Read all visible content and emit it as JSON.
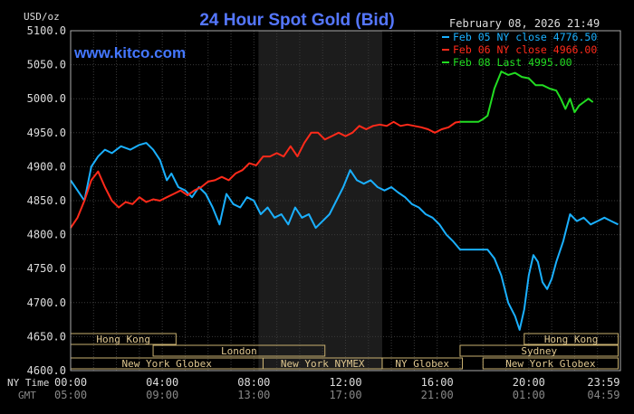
{
  "chart_data": {
    "type": "line",
    "title": "24 Hour Spot Gold (Bid)",
    "units_label": "USD/oz",
    "website": "www.kitco.com",
    "timestamp": "February 08, 2026 21:49",
    "ylim": [
      4600,
      5100
    ],
    "y_ticks": [
      "5100.0",
      "5050.0",
      "5000.0",
      "4950.0",
      "4900.0",
      "4850.0",
      "4800.0",
      "4750.0",
      "4700.0",
      "4650.0",
      "4600.0"
    ],
    "x_ticks_ny": [
      "00:00",
      "04:00",
      "08:00",
      "12:00",
      "16:00",
      "20:00",
      "23:59"
    ],
    "x_ticks_gmt": [
      "05:00",
      "09:00",
      "13:00",
      "17:00",
      "21:00",
      "01:00",
      "04:59"
    ],
    "ny_time_label": "NY Time",
    "gmt_label": "GMT",
    "xlim_hours": [
      0,
      24
    ],
    "shaded_region_hours": [
      8.2,
      13.6
    ],
    "grid": true,
    "legend": [
      {
        "text": "Feb 05 NY close 4776.50",
        "color": "#1ab0ff"
      },
      {
        "text": "Feb 06 NY close 4966.00",
        "color": "#ff2a1a"
      },
      {
        "text": "Feb 08 Last 4995.00",
        "color": "#22dd22"
      }
    ],
    "series": [
      {
        "name": "Feb 05",
        "color": "#1ab0ff",
        "x": [
          0,
          0.3,
          0.6,
          0.9,
          1.2,
          1.5,
          1.8,
          2.2,
          2.6,
          3.0,
          3.3,
          3.6,
          3.9,
          4.2,
          4.4,
          4.7,
          5.0,
          5.3,
          5.6,
          5.9,
          6.2,
          6.5,
          6.8,
          7.1,
          7.4,
          7.7,
          8.0,
          8.3,
          8.6,
          8.9,
          9.2,
          9.5,
          9.8,
          10.1,
          10.4,
          10.7,
          11.0,
          11.3,
          11.6,
          11.9,
          12.2,
          12.5,
          12.8,
          13.1,
          13.4,
          13.7,
          14.0,
          14.3,
          14.6,
          14.9,
          15.2,
          15.5,
          15.8,
          16.1,
          16.4,
          16.7,
          17.0,
          17.3,
          17.6,
          17.9,
          18.2,
          18.5,
          18.8,
          19.1,
          19.4,
          19.6,
          19.8,
          20.0,
          20.2,
          20.4,
          20.6,
          20.8,
          21.0,
          21.2,
          21.5,
          21.8,
          22.1,
          22.4,
          22.7,
          23.0,
          23.3,
          23.6,
          23.9
        ],
        "values": [
          4880,
          4865,
          4850,
          4900,
          4915,
          4925,
          4920,
          4930,
          4925,
          4932,
          4935,
          4925,
          4910,
          4880,
          4890,
          4870,
          4865,
          4855,
          4870,
          4860,
          4840,
          4815,
          4860,
          4845,
          4840,
          4855,
          4850,
          4830,
          4840,
          4825,
          4830,
          4815,
          4840,
          4825,
          4830,
          4810,
          4820,
          4830,
          4850,
          4870,
          4895,
          4880,
          4875,
          4880,
          4870,
          4865,
          4870,
          4862,
          4855,
          4845,
          4840,
          4830,
          4825,
          4815,
          4800,
          4790,
          4778,
          4778,
          4778,
          4778,
          4778,
          4765,
          4740,
          4700,
          4680,
          4660,
          4690,
          4740,
          4770,
          4760,
          4730,
          4720,
          4735,
          4760,
          4790,
          4830,
          4820,
          4825,
          4815,
          4820,
          4825,
          4820,
          4815
        ]
      },
      {
        "name": "Feb 06",
        "color": "#ff2a1a",
        "x": [
          0,
          0.3,
          0.6,
          0.9,
          1.2,
          1.5,
          1.8,
          2.1,
          2.4,
          2.7,
          3.0,
          3.3,
          3.6,
          3.9,
          4.2,
          4.5,
          4.8,
          5.1,
          5.4,
          5.7,
          6.0,
          6.3,
          6.6,
          6.9,
          7.2,
          7.5,
          7.8,
          8.1,
          8.4,
          8.7,
          9.0,
          9.3,
          9.6,
          9.9,
          10.2,
          10.5,
          10.8,
          11.1,
          11.4,
          11.7,
          12.0,
          12.3,
          12.6,
          12.9,
          13.2,
          13.5,
          13.8,
          14.1,
          14.4,
          14.7,
          15.0,
          15.3,
          15.6,
          15.9,
          16.2,
          16.5,
          16.8,
          17.0
        ],
        "values": [
          4810,
          4825,
          4850,
          4880,
          4893,
          4870,
          4850,
          4840,
          4848,
          4845,
          4855,
          4848,
          4852,
          4850,
          4855,
          4860,
          4865,
          4858,
          4865,
          4870,
          4878,
          4880,
          4885,
          4880,
          4890,
          4895,
          4905,
          4902,
          4915,
          4915,
          4920,
          4915,
          4930,
          4915,
          4935,
          4950,
          4950,
          4940,
          4945,
          4950,
          4945,
          4950,
          4960,
          4955,
          4960,
          4962,
          4960,
          4966,
          4960,
          4962,
          4960,
          4958,
          4955,
          4950,
          4955,
          4958,
          4965,
          4966
        ]
      },
      {
        "name": "Feb 08",
        "color": "#22dd22",
        "x": [
          17.0,
          17.4,
          17.8,
          18.0,
          18.2,
          18.5,
          18.8,
          19.1,
          19.4,
          19.7,
          20.0,
          20.3,
          20.6,
          20.9,
          21.2,
          21.4,
          21.6,
          21.8,
          22.0,
          22.2,
          22.4,
          22.6,
          22.8
        ],
        "values": [
          4966,
          4966,
          4966,
          4970,
          4975,
          5015,
          5040,
          5035,
          5038,
          5032,
          5030,
          5020,
          5020,
          5015,
          5012,
          5000,
          4985,
          5000,
          4980,
          4990,
          4995,
          5000,
          4995
        ]
      }
    ],
    "sessions": [
      {
        "name": "Hong Kong",
        "row": 1,
        "start": 0,
        "end": 4.6
      },
      {
        "name": "Hong Kong",
        "row": 1,
        "start": 19.8,
        "end": 23.9
      },
      {
        "name": "London",
        "row": 2,
        "start": 3.6,
        "end": 11.1
      },
      {
        "name": "Sydney",
        "row": 2,
        "start": 17.0,
        "end": 23.9
      },
      {
        "name": "New York Globex",
        "row": 3,
        "start": 0,
        "end": 8.4
      },
      {
        "name": "New York NYMEX",
        "row": 3,
        "start": 8.4,
        "end": 13.6
      },
      {
        "name": "NY Globex",
        "row": 3,
        "start": 13.6,
        "end": 17.1
      },
      {
        "name": "New York Globex",
        "row": 3,
        "start": 18.0,
        "end": 23.9
      }
    ]
  }
}
